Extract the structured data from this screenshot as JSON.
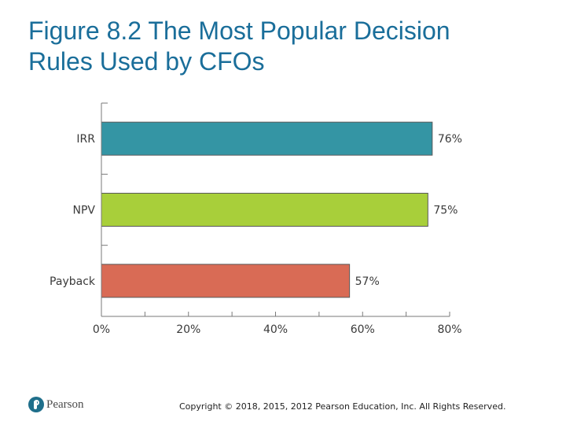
{
  "title": {
    "line1": "Figure 8.2 The Most Popular Decision",
    "line2": "Rules Used by CFOs"
  },
  "chart_data": {
    "type": "bar",
    "orientation": "horizontal",
    "title": "Figure 8.2 The Most Popular Decision Rules Used by CFOs",
    "categories": [
      "IRR",
      "NPV",
      "Payback"
    ],
    "values": [
      76,
      75,
      57
    ],
    "value_labels": [
      "76%",
      "75%",
      "57%"
    ],
    "bar_colors": [
      "#3495a4",
      "#a8cf3a",
      "#d96b55"
    ],
    "xlim": [
      0,
      80
    ],
    "xticks": [
      0,
      20,
      40,
      60,
      80
    ],
    "xtick_labels": [
      "0%",
      "20%",
      "40%",
      "60%",
      "80%"
    ],
    "xlabel": "",
    "ylabel": "",
    "grid": false
  },
  "footer": {
    "logo_text": "Pearson",
    "copyright": "Copyright © 2018, 2015, 2012 Pearson Education, Inc. All Rights Reserved."
  }
}
